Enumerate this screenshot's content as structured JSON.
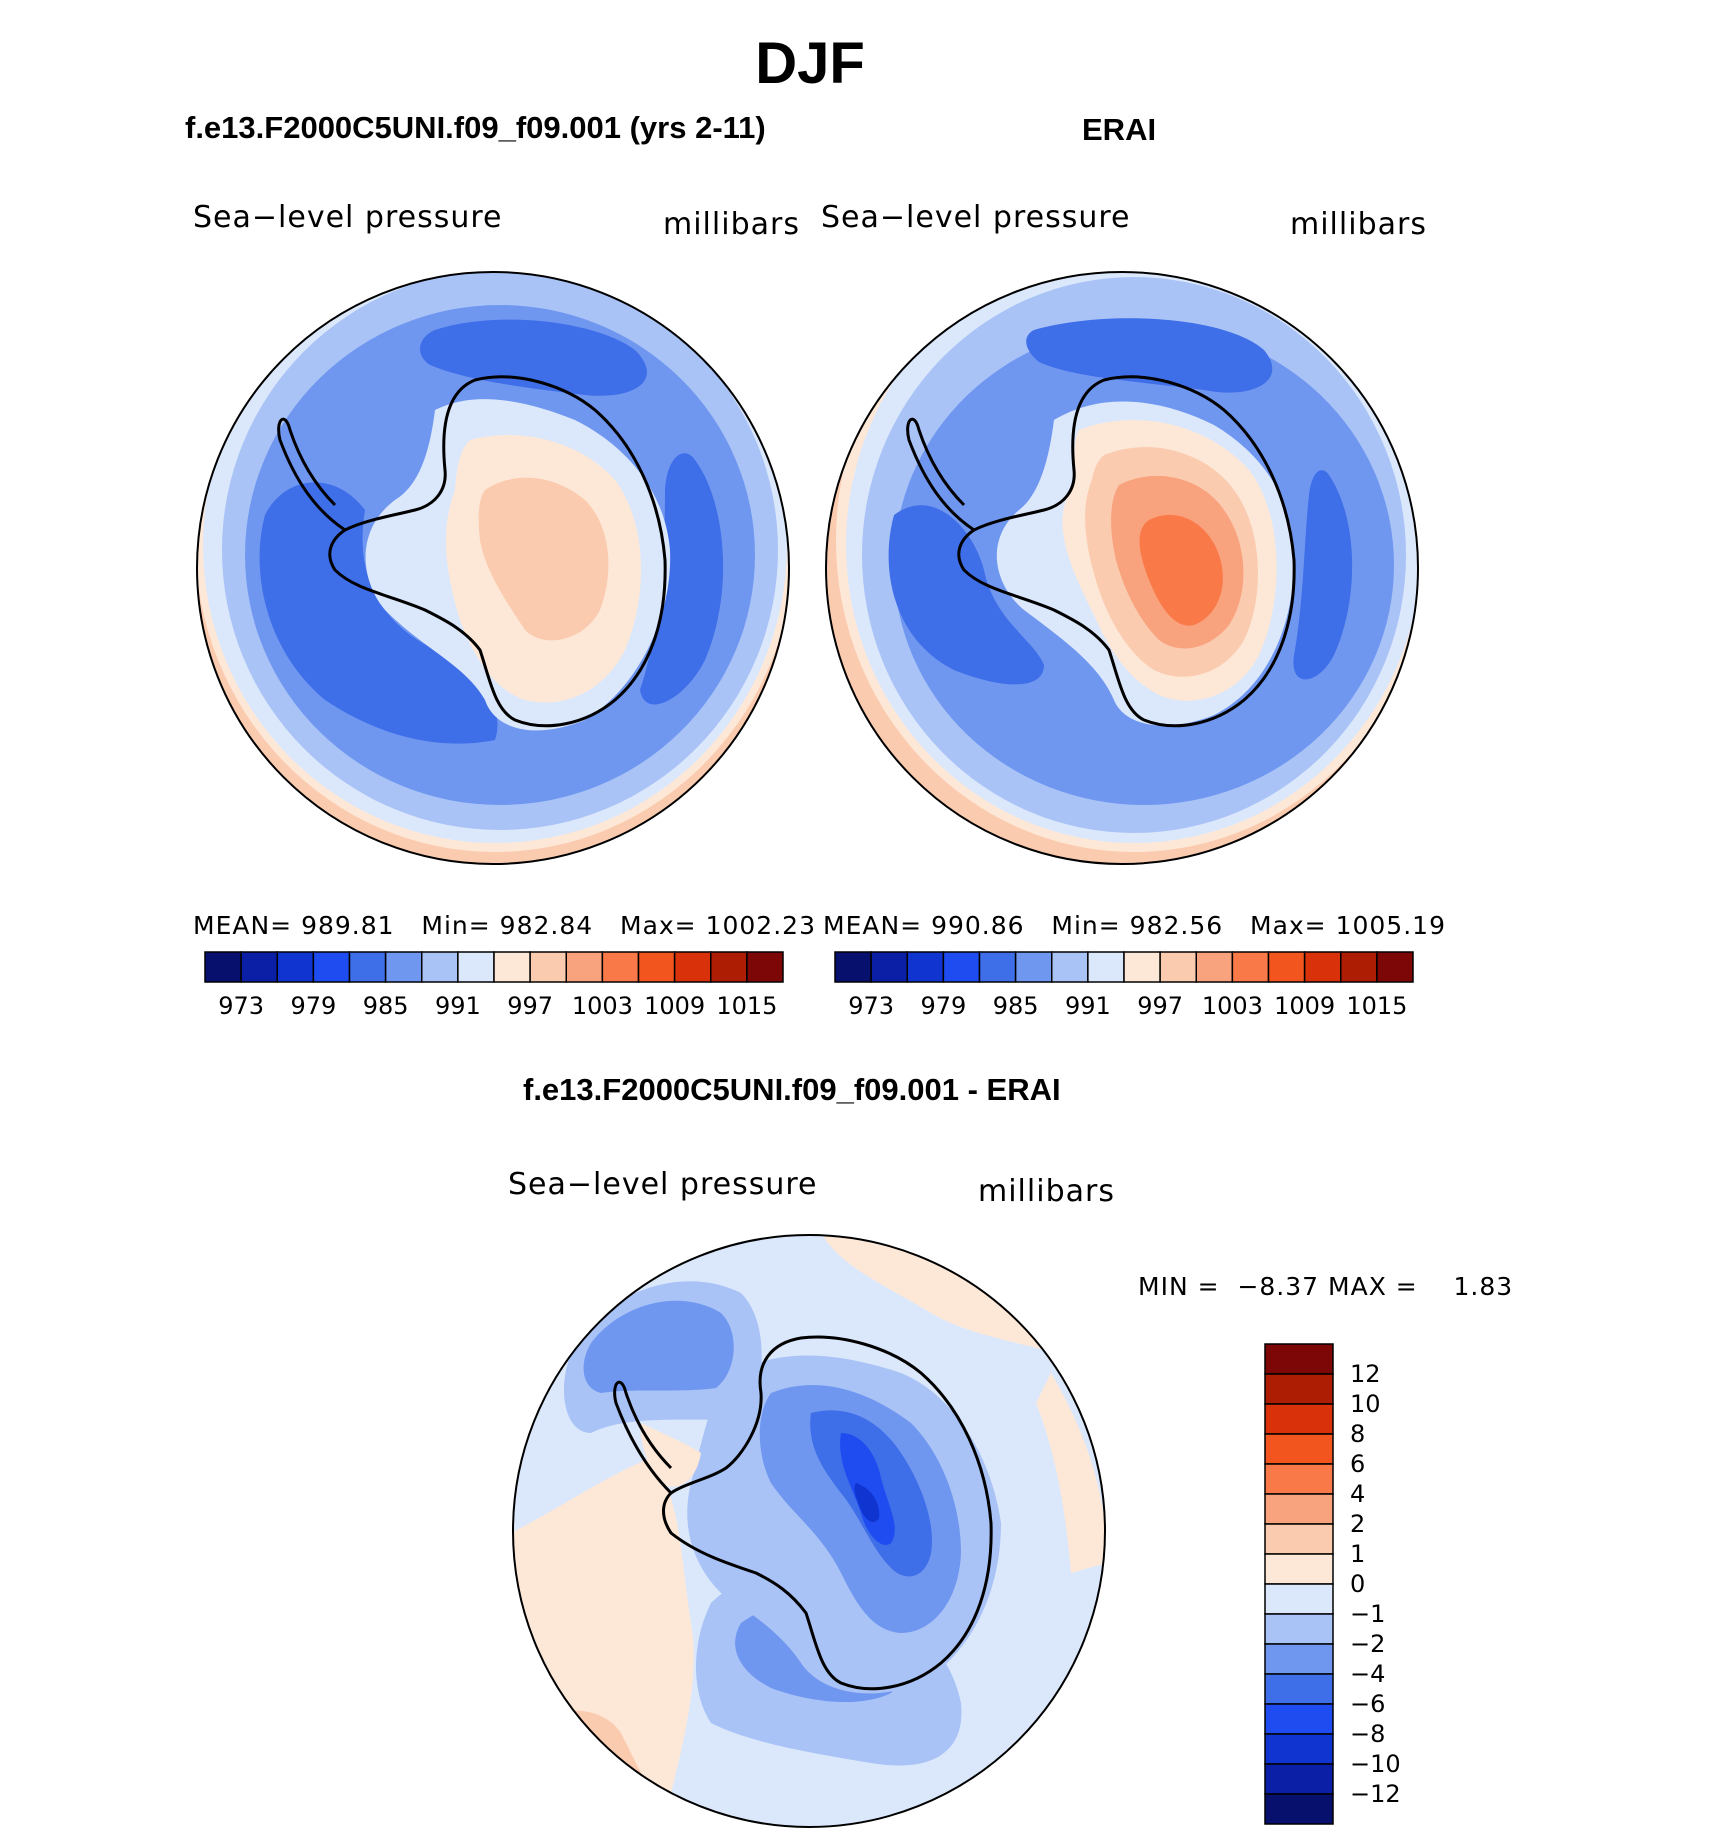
{
  "title": "DJF",
  "panels": [
    {
      "case_title": "f.e13.F2000C5UNI.f09_f09.001 (yrs 2-11)",
      "variable": "Sea−level pressure",
      "units": "millibars",
      "stats": {
        "mean": "989.81",
        "min": "982.84",
        "max": "1002.23"
      }
    },
    {
      "case_title": "ERAI",
      "variable": "Sea−level pressure",
      "units": "millibars",
      "stats": {
        "mean": "990.86",
        "min": "982.56",
        "max": "1005.19"
      }
    }
  ],
  "stat_labels": {
    "mean": "MEAN=",
    "min": "Min=",
    "max": "Max="
  },
  "colorbar": {
    "labels": [
      "973",
      "979",
      "985",
      "991",
      "997",
      "1003",
      "1009",
      "1015"
    ],
    "colors": [
      "#08106e",
      "#0a1fa6",
      "#1034d0",
      "#1e4cf0",
      "#3e6ee8",
      "#7097f0",
      "#a9c3f7",
      "#dbe7fb",
      "#fde8d8",
      "#fbcbb0",
      "#f9a27e",
      "#f97a48",
      "#f3551f",
      "#d9320b",
      "#ad1d04",
      "#7d0606"
    ]
  },
  "difference": {
    "title": "f.e13.F2000C5UNI.f09_f09.001 - ERAI",
    "variable": "Sea−level pressure",
    "units": "millibars",
    "min_label": "MIN =",
    "min": "−8.37",
    "max_label": "MAX =",
    "max": "1.83",
    "colorbar_labels": [
      "12",
      "10",
      "8",
      "6",
      "4",
      "2",
      "1",
      "0",
      "−1",
      "−2",
      "−4",
      "−6",
      "−8",
      "−10",
      "−12"
    ],
    "colorbar_colors": [
      "#7d0606",
      "#ad1d04",
      "#d9320b",
      "#f3551f",
      "#f97a48",
      "#f9a27e",
      "#fbcbb0",
      "#fde8d8",
      "#dbe7fb",
      "#a9c3f7",
      "#7097f0",
      "#3e6ee8",
      "#1e4cf0",
      "#1034d0",
      "#0a1fa6",
      "#08106e"
    ]
  },
  "map_colors": {
    "ocean_low": "#3e6ee8",
    "ocean_mid": "#7097f0",
    "ocean_light": "#a9c3f7",
    "ocean_pale": "#dbe7fb",
    "warm_pale": "#fde8d8",
    "warm_light": "#fbcbb0",
    "warm_mid": "#f9a27e",
    "warm_strong": "#f97a48"
  }
}
